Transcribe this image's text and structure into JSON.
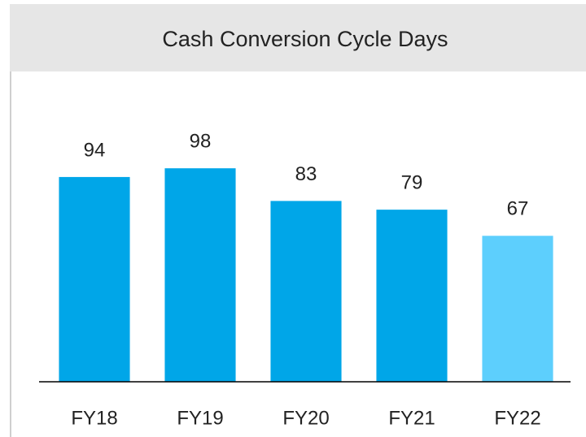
{
  "chart_data": {
    "type": "bar",
    "title": "Cash Conversion Cycle Days",
    "categories": [
      "FY18",
      "FY19",
      "FY20",
      "FY21",
      "FY22"
    ],
    "values": [
      94,
      98,
      83,
      79,
      67
    ],
    "colors": [
      "#00a6e8",
      "#00a6e8",
      "#00a6e8",
      "#00a6e8",
      "#5dcffd"
    ],
    "ylim": [
      0,
      110
    ]
  }
}
